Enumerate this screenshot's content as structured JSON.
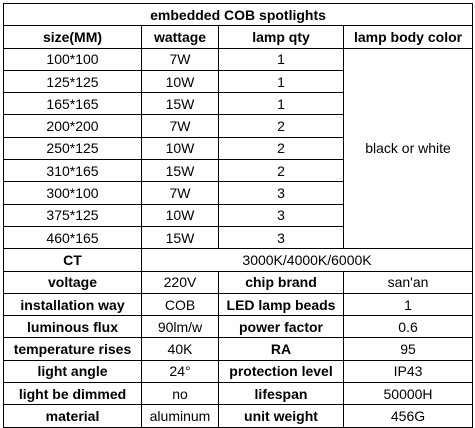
{
  "title": "embedded COB spotlights",
  "header": [
    "size(MM)",
    "wattage",
    "lamp qty",
    "lamp body color"
  ],
  "rows": [
    [
      "100*100",
      "7W",
      "1"
    ],
    [
      "125*125",
      "10W",
      "1"
    ],
    [
      "165*165",
      "15W",
      "1"
    ],
    [
      "200*200",
      "7W",
      "2"
    ],
    [
      "250*125",
      "10W",
      "2"
    ],
    [
      "310*165",
      "15W",
      "2"
    ],
    [
      "300*100",
      "7W",
      "3"
    ],
    [
      "375*125",
      "10W",
      "3"
    ],
    [
      "460*165",
      "15W",
      "3"
    ]
  ],
  "body_color": "black or white",
  "ct": {
    "label": "CT",
    "value": "3000K/4000K/6000K"
  },
  "specs": [
    [
      "voltage",
      "220V",
      "chip brand",
      "san'an"
    ],
    [
      "installation way",
      "COB",
      "LED lamp beads",
      "1"
    ],
    [
      "luminous flux",
      "90lm/w",
      "power factor",
      "0.6"
    ],
    [
      "temperature rises",
      "40K",
      "RA",
      "95"
    ],
    [
      "light angle",
      "24°",
      "protection level",
      "IP43"
    ],
    [
      "light be dimmed",
      "no",
      "lifespan",
      "50000H"
    ],
    [
      "material",
      "aluminum",
      "unit weight",
      "456G"
    ]
  ]
}
